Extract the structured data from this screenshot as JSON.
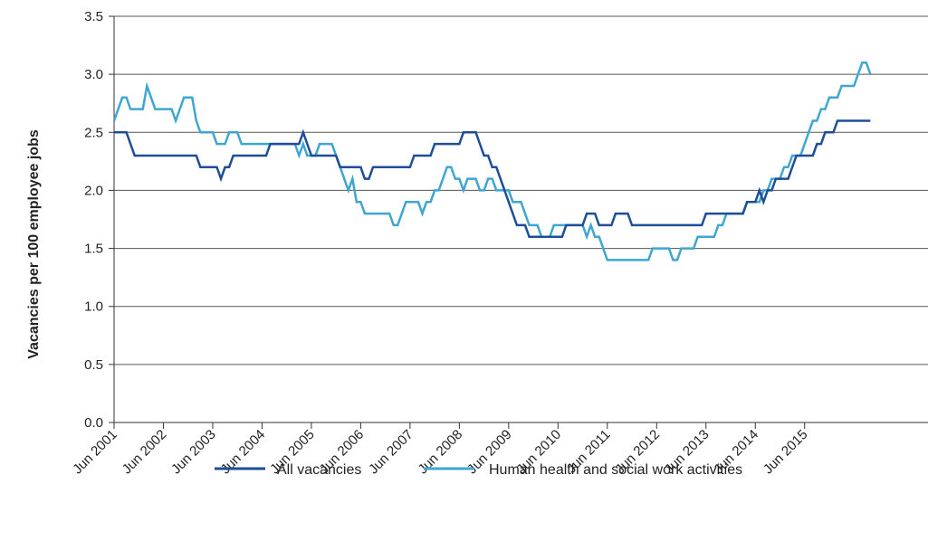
{
  "chart_data": {
    "type": "line",
    "title": "",
    "xlabel": "",
    "ylabel": "Vacancies per 100 employee jobs",
    "ylim": [
      0,
      3.5
    ],
    "yticks": [
      "0.0",
      "0.5",
      "1.0",
      "1.5",
      "2.0",
      "2.5",
      "3.0",
      "3.5"
    ],
    "xticks": [
      "Jun 2001",
      "Jun 2002",
      "Jun 2003",
      "Jun 2004",
      "Jun 2005",
      "Jun 2006",
      "Jun 2007",
      "Jun 2008",
      "Jun 2009",
      "Jun 2010",
      "Jun 2011",
      "Jun 2012",
      "Jun 2013",
      "Jun 2014",
      "Jun 2015"
    ],
    "grid": "horizontal",
    "legend_position": "bottom",
    "series": [
      {
        "name": "All vacancies",
        "color": "#1f4e99",
        "values": [
          2.5,
          2.5,
          2.5,
          2.5,
          2.4,
          2.3,
          2.3,
          2.3,
          2.3,
          2.3,
          2.3,
          2.3,
          2.3,
          2.3,
          2.3,
          2.3,
          2.3,
          2.3,
          2.3,
          2.3,
          2.3,
          2.2,
          2.2,
          2.2,
          2.2,
          2.2,
          2.1,
          2.2,
          2.2,
          2.3,
          2.3,
          2.3,
          2.3,
          2.3,
          2.3,
          2.3,
          2.3,
          2.3,
          2.4,
          2.4,
          2.4,
          2.4,
          2.4,
          2.4,
          2.4,
          2.4,
          2.5,
          2.4,
          2.3,
          2.3,
          2.3,
          2.3,
          2.3,
          2.3,
          2.3,
          2.2,
          2.2,
          2.2,
          2.2,
          2.2,
          2.2,
          2.1,
          2.1,
          2.2,
          2.2,
          2.2,
          2.2,
          2.2,
          2.2,
          2.2,
          2.2,
          2.2,
          2.2,
          2.3,
          2.3,
          2.3,
          2.3,
          2.3,
          2.4,
          2.4,
          2.4,
          2.4,
          2.4,
          2.4,
          2.4,
          2.5,
          2.5,
          2.5,
          2.5,
          2.4,
          2.3,
          2.3,
          2.2,
          2.2,
          2.1,
          2.0,
          1.9,
          1.8,
          1.7,
          1.7,
          1.7,
          1.6,
          1.6,
          1.6,
          1.6,
          1.6,
          1.6,
          1.6,
          1.6,
          1.6,
          1.7,
          1.7,
          1.7,
          1.7,
          1.7,
          1.8,
          1.8,
          1.8,
          1.7,
          1.7,
          1.7,
          1.7,
          1.8,
          1.8,
          1.8,
          1.8,
          1.7,
          1.7,
          1.7,
          1.7,
          1.7,
          1.7,
          1.7,
          1.7,
          1.7,
          1.7,
          1.7,
          1.7,
          1.7,
          1.7,
          1.7,
          1.7,
          1.7,
          1.7,
          1.8,
          1.8,
          1.8,
          1.8,
          1.8,
          1.8,
          1.8,
          1.8,
          1.8,
          1.8,
          1.9,
          1.9,
          1.9,
          2.0,
          1.9,
          2.0,
          2.0,
          2.1,
          2.1,
          2.1,
          2.1,
          2.2,
          2.3,
          2.3,
          2.3,
          2.3,
          2.3,
          2.4,
          2.4,
          2.5,
          2.5,
          2.5,
          2.6,
          2.6,
          2.6,
          2.6,
          2.6,
          2.6,
          2.6,
          2.6,
          2.6
        ]
      },
      {
        "name": "Human health and social work activities",
        "color": "#3fa6d2",
        "values": [
          2.6,
          2.7,
          2.8,
          2.8,
          2.7,
          2.7,
          2.7,
          2.7,
          2.9,
          2.8,
          2.7,
          2.7,
          2.7,
          2.7,
          2.7,
          2.6,
          2.7,
          2.8,
          2.8,
          2.8,
          2.6,
          2.5,
          2.5,
          2.5,
          2.5,
          2.4,
          2.4,
          2.4,
          2.5,
          2.5,
          2.5,
          2.4,
          2.4,
          2.4,
          2.4,
          2.4,
          2.4,
          2.4,
          2.4,
          2.4,
          2.4,
          2.4,
          2.4,
          2.4,
          2.4,
          2.3,
          2.4,
          2.3,
          2.3,
          2.3,
          2.4,
          2.4,
          2.4,
          2.4,
          2.3,
          2.2,
          2.1,
          2.0,
          2.1,
          1.9,
          1.9,
          1.8,
          1.8,
          1.8,
          1.8,
          1.8,
          1.8,
          1.8,
          1.7,
          1.7,
          1.8,
          1.9,
          1.9,
          1.9,
          1.9,
          1.8,
          1.9,
          1.9,
          2.0,
          2.0,
          2.1,
          2.2,
          2.2,
          2.1,
          2.1,
          2.0,
          2.1,
          2.1,
          2.1,
          2.0,
          2.0,
          2.1,
          2.1,
          2.0,
          2.0,
          2.0,
          2.0,
          1.9,
          1.9,
          1.9,
          1.8,
          1.7,
          1.7,
          1.7,
          1.6,
          1.6,
          1.6,
          1.7,
          1.7,
          1.7,
          1.7,
          1.7,
          1.7,
          1.7,
          1.7,
          1.6,
          1.7,
          1.6,
          1.6,
          1.5,
          1.4,
          1.4,
          1.4,
          1.4,
          1.4,
          1.4,
          1.4,
          1.4,
          1.4,
          1.4,
          1.4,
          1.5,
          1.5,
          1.5,
          1.5,
          1.5,
          1.4,
          1.4,
          1.5,
          1.5,
          1.5,
          1.5,
          1.6,
          1.6,
          1.6,
          1.6,
          1.6,
          1.7,
          1.7,
          1.8,
          1.8,
          1.8,
          1.8,
          1.8,
          1.9,
          1.9,
          1.9,
          1.9,
          2.0,
          2.0,
          2.1,
          2.1,
          2.1,
          2.2,
          2.2,
          2.3,
          2.3,
          2.3,
          2.4,
          2.5,
          2.6,
          2.6,
          2.7,
          2.7,
          2.8,
          2.8,
          2.8,
          2.9,
          2.9,
          2.9,
          2.9,
          3.0,
          3.1,
          3.1,
          3.0
        ]
      }
    ]
  }
}
